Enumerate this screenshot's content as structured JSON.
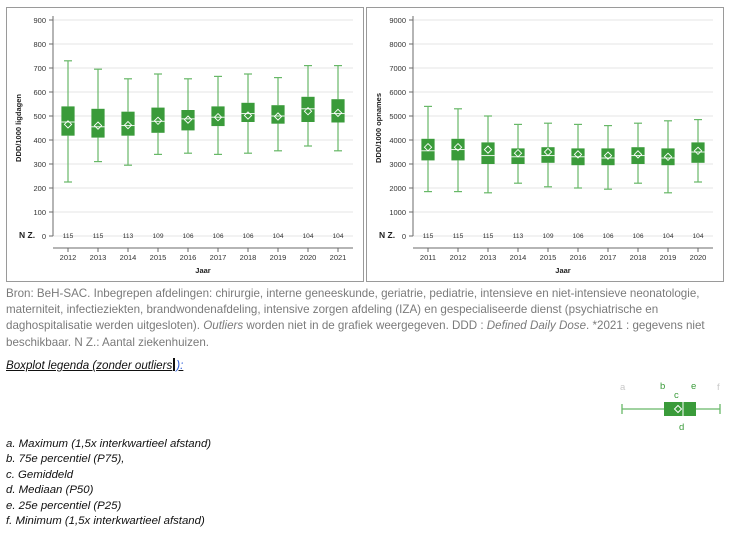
{
  "colors": {
    "box": "#3a9b3a",
    "whisker": "#68b868",
    "grid": "#e4e4e4",
    "axis": "#6b6b6b",
    "legend_faint": "#c8c8c8"
  },
  "chart_data": [
    {
      "type": "boxplot",
      "xlabel": "Jaar",
      "ylabel": "DDD/1000 ligdagen",
      "ylim": [
        0,
        900
      ],
      "yticks": [
        0,
        100,
        200,
        300,
        400,
        500,
        600,
        700,
        800,
        900
      ],
      "n_label": "N Z.",
      "categories": [
        "2012",
        "2013",
        "2014",
        "2015",
        "2016",
        "2017",
        "2018",
        "2019",
        "2020",
        "2021"
      ],
      "n": [
        "115",
        "115",
        "113",
        "109",
        "106",
        "106",
        "106",
        "104",
        "104",
        "104"
      ],
      "min": [
        225,
        310,
        295,
        340,
        345,
        340,
        345,
        355,
        375,
        355
      ],
      "q1": [
        418,
        410,
        418,
        430,
        440,
        458,
        475,
        468,
        475,
        473
      ],
      "median": [
        475,
        455,
        460,
        478,
        488,
        495,
        510,
        500,
        530,
        510
      ],
      "mean": [
        465,
        460,
        462,
        480,
        485,
        495,
        502,
        498,
        520,
        513
      ],
      "q3": [
        540,
        530,
        518,
        535,
        525,
        540,
        555,
        545,
        580,
        570
      ],
      "max": [
        730,
        695,
        655,
        675,
        655,
        665,
        675,
        660,
        710,
        710
      ]
    },
    {
      "type": "boxplot",
      "xlabel": "Jaar",
      "ylabel": "DDD/1000 opnames",
      "ylim": [
        0,
        9000
      ],
      "yticks": [
        0,
        1000,
        2000,
        3000,
        4000,
        5000,
        6000,
        7000,
        8000,
        9000
      ],
      "n_label": "N Z.",
      "categories": [
        "2011",
        "2012",
        "2013",
        "2014",
        "2015",
        "2016",
        "2017",
        "2018",
        "2019",
        "2020"
      ],
      "n": [
        "115",
        "115",
        "115",
        "113",
        "109",
        "106",
        "106",
        "106",
        "104",
        "104"
      ],
      "min": [
        1850,
        1850,
        1800,
        2200,
        2050,
        2000,
        1950,
        2200,
        1800,
        2250
      ],
      "q1": [
        3150,
        3150,
        3000,
        3000,
        3050,
        2950,
        2950,
        3000,
        2950,
        3050
      ],
      "median": [
        3550,
        3600,
        3350,
        3300,
        3350,
        3300,
        3250,
        3350,
        3250,
        3500
      ],
      "mean": [
        3700,
        3700,
        3600,
        3450,
        3500,
        3400,
        3350,
        3400,
        3300,
        3550
      ],
      "q3": [
        4050,
        4050,
        3900,
        3650,
        3700,
        3650,
        3650,
        3700,
        3650,
        3900
      ],
      "max": [
        5400,
        5300,
        5000,
        4650,
        4700,
        4650,
        4600,
        4700,
        4800,
        4850
      ]
    }
  ],
  "source": {
    "text1": "Bron: BeH-SAC. Inbegrepen afdelingen: chirurgie, interne geneeskunde, geriatrie, pediatrie, intensieve en niet-intensieve neonatologie, materniteit, infectieziekten, brandwondenafdeling, intensive zorgen afdeling (IZA) en gespecialiseerde dienst (psychiatrische en daghospitalisatie werden uitgesloten).",
    "outliers": "Outliers",
    "text2": " worden niet in de grafiek weergegeven. DDD : ",
    "ddd": "Defined Daily Dose",
    "text3": ". *2021 : gegevens niet beschikbaar. N Z.: Aantal ziekenhuizen."
  },
  "legend": {
    "title": "Boxplot legenda (zonder outliers",
    "title_link": "):",
    "letters": [
      "a",
      "b",
      "c",
      "d",
      "e",
      "f"
    ],
    "items": [
      "a. Maximum (1,5x interkwartieel afstand)",
      "b. 75e percentiel (P75),",
      "c. Gemiddeld",
      "d. Mediaan (P50)",
      "e. 25e percentiel (P25)",
      "f. Minimum (1,5x interkwartieel afstand)"
    ]
  }
}
